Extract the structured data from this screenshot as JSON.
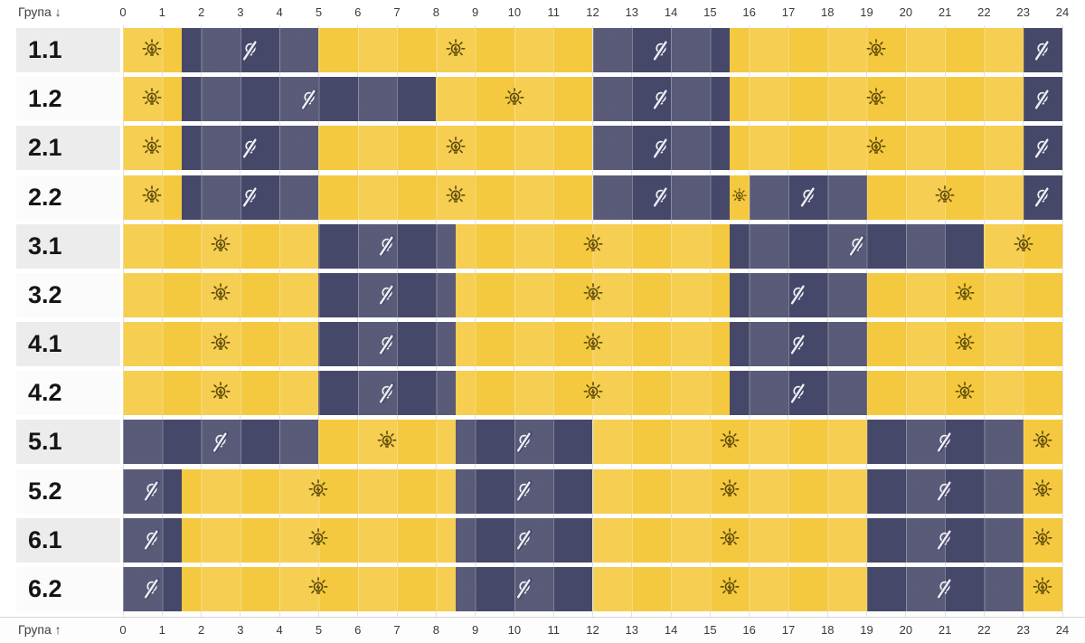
{
  "axis": {
    "top_left_label": "Група ↓",
    "bottom_left_label": "Група ↑",
    "hours": [
      "0",
      "1",
      "2",
      "3",
      "4",
      "5",
      "6",
      "7",
      "8",
      "9",
      "10",
      "11",
      "12",
      "13",
      "14",
      "15",
      "16",
      "17",
      "18",
      "19",
      "20",
      "21",
      "22",
      "23",
      "24"
    ]
  },
  "chart_data": {
    "type": "schedule-gantt",
    "x_unit": "hour",
    "x_range": [
      0,
      24
    ],
    "row_states": [
      "power-on",
      "power-off"
    ],
    "groups": [
      {
        "label": "1.1",
        "off_intervals": [
          [
            1.5,
            5
          ],
          [
            12,
            15.5
          ],
          [
            23,
            24
          ]
        ]
      },
      {
        "label": "1.2",
        "off_intervals": [
          [
            1.5,
            8
          ],
          [
            12,
            15.5
          ],
          [
            23,
            24
          ]
        ]
      },
      {
        "label": "2.1",
        "off_intervals": [
          [
            1.5,
            5
          ],
          [
            12,
            15.5
          ],
          [
            23,
            24
          ]
        ]
      },
      {
        "label": "2.2",
        "off_intervals": [
          [
            1.5,
            5
          ],
          [
            12,
            15.5
          ],
          [
            16,
            19
          ],
          [
            23,
            24
          ]
        ]
      },
      {
        "label": "3.1",
        "off_intervals": [
          [
            5,
            8.5
          ],
          [
            15.5,
            22
          ]
        ]
      },
      {
        "label": "3.2",
        "off_intervals": [
          [
            5,
            8.5
          ],
          [
            15.5,
            19
          ]
        ]
      },
      {
        "label": "4.1",
        "off_intervals": [
          [
            5,
            8.5
          ],
          [
            15.5,
            19
          ]
        ]
      },
      {
        "label": "4.2",
        "off_intervals": [
          [
            5,
            8.5
          ],
          [
            15.5,
            19
          ]
        ]
      },
      {
        "label": "5.1",
        "off_intervals": [
          [
            0,
            5
          ],
          [
            8.5,
            12
          ],
          [
            19,
            23
          ]
        ]
      },
      {
        "label": "5.2",
        "off_intervals": [
          [
            0,
            1.5
          ],
          [
            8.5,
            12
          ],
          [
            19,
            23
          ]
        ]
      },
      {
        "label": "6.1",
        "off_intervals": [
          [
            0,
            1.5
          ],
          [
            8.5,
            12
          ],
          [
            19,
            23
          ]
        ]
      },
      {
        "label": "6.2",
        "off_intervals": [
          [
            0,
            1.5
          ],
          [
            8.5,
            12
          ],
          [
            19,
            23
          ]
        ]
      }
    ]
  },
  "icons": {
    "on": "bulb-on-icon",
    "off": "bulb-slash-icon"
  },
  "colors": {
    "power_on": "#F4C93F",
    "power_off": "#464869",
    "label_bg_odd_row": "#ECECEC",
    "label_bg_even_row": "#FBFBFB",
    "icon_on": "#5E4B08",
    "icon_off": "#EFEFF4"
  }
}
